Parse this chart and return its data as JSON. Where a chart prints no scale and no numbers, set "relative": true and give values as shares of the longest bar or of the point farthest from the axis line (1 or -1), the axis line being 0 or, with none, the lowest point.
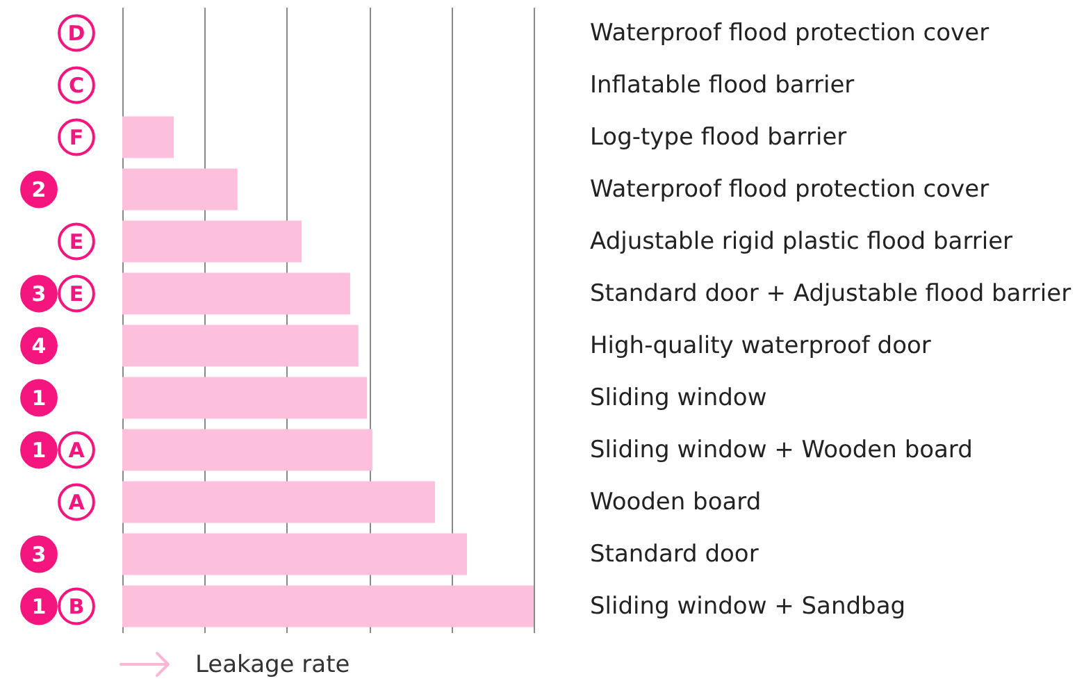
{
  "chart_data": {
    "type": "bar",
    "orientation": "horizontal",
    "relative": true,
    "xlabel": "Leakage rate",
    "color": "#fcc0dd",
    "grid": "x",
    "categories": [
      "Waterproof flood protection cover",
      "Inflatable flood barrier",
      "Log-type flood barrier",
      "Waterproof flood  protection cover",
      "Adjustable rigid plastic flood barrier",
      "Standard door + Adjustable flood barrier",
      "High-quality waterproof door",
      "Sliding window",
      "Sliding window + Wooden board",
      "Wooden board",
      "Standard door",
      "Sliding window + Sandbag"
    ],
    "values": [
      0,
      0,
      0.125,
      0.28,
      0.436,
      0.554,
      0.574,
      0.595,
      0.608,
      0.76,
      0.838,
      1
    ],
    "annotations": [
      "D",
      "C",
      "F",
      "2",
      "E",
      "3 E",
      "4",
      "1",
      "1 A",
      "A",
      "3",
      "1 B"
    ]
  }
}
